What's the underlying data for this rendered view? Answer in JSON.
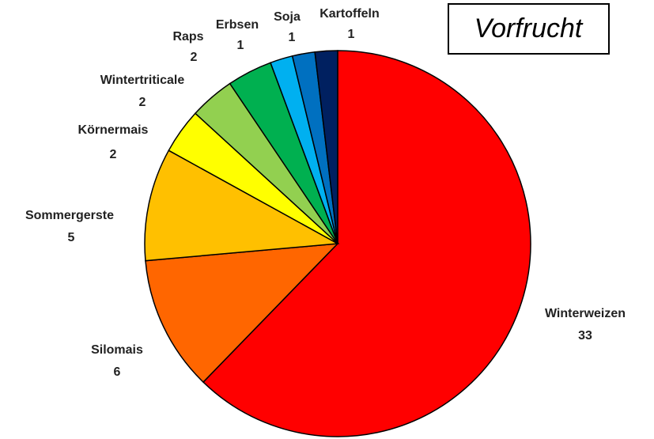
{
  "chart_data": {
    "type": "pie",
    "title": "Vorfrucht",
    "categories": [
      "Winterweizen",
      "Silomais",
      "Sommergerste",
      "Körnermais",
      "Wintertriticale",
      "Raps",
      "Erbsen",
      "Soja",
      "Kartoffeln"
    ],
    "values": [
      33,
      6,
      5,
      2,
      2,
      2,
      1,
      1,
      1
    ],
    "colors": [
      "#ff0000",
      "#ff6600",
      "#ffc000",
      "#ffff00",
      "#92d050",
      "#00b050",
      "#00b0f0",
      "#0070c0",
      "#002060"
    ]
  }
}
